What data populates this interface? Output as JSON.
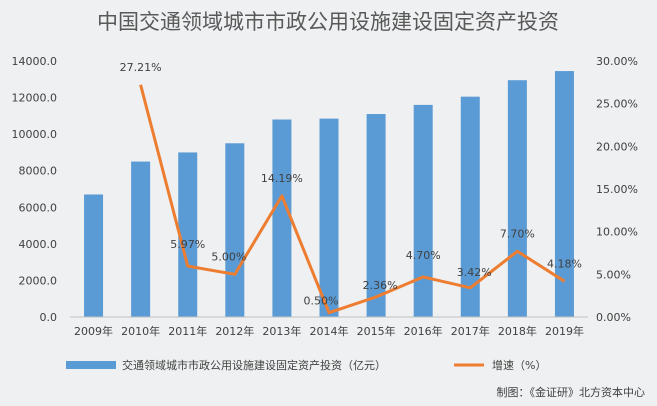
{
  "chart_data": {
    "type": "bar",
    "title": "中国交通领域城市市政公用设施建设固定资产投资",
    "categories": [
      "2009年",
      "2010年",
      "2011年",
      "2012年",
      "2013年",
      "2014年",
      "2015年",
      "2016年",
      "2017年",
      "2018年",
      "2019年"
    ],
    "series": [
      {
        "name": "交通领域城市市政公用设施建设固定资产投资（亿元）",
        "type": "bar",
        "axis": "left",
        "color": "#5b9bd5",
        "values": [
          6700,
          8500,
          9000,
          9500,
          10800,
          10850,
          11100,
          11600,
          12050,
          12950,
          13450
        ]
      },
      {
        "name": "增速（%）",
        "type": "line",
        "axis": "right",
        "color": "#ed7d31",
        "values": [
          null,
          27.21,
          5.97,
          5.0,
          14.19,
          0.5,
          2.36,
          4.7,
          3.42,
          7.7,
          4.18
        ],
        "labels": [
          "",
          "27.21%",
          "5.97%",
          "5.00%",
          "14.19%",
          "0.50%",
          "2.36%",
          "4.70%",
          "3.42%",
          "7.70%",
          "4.18%"
        ]
      }
    ],
    "left_axis": {
      "min": 0,
      "max": 14000,
      "ticks": [
        0,
        2000,
        4000,
        6000,
        8000,
        10000,
        12000,
        14000
      ],
      "tick_labels": [
        "0.0",
        "2000.0",
        "4000.0",
        "6000.0",
        "8000.0",
        "10000.0",
        "12000.0",
        "14000.0"
      ]
    },
    "right_axis": {
      "min": 0,
      "max": 30,
      "ticks": [
        0,
        5,
        10,
        15,
        20,
        25,
        30
      ],
      "tick_labels": [
        "0.00%",
        "5.00%",
        "10.00%",
        "15.00%",
        "20.00%",
        "25.00%",
        "30.00%"
      ]
    },
    "grid": false,
    "legend_position": "bottom",
    "source": "制图：《金证研》北方资本中心"
  }
}
